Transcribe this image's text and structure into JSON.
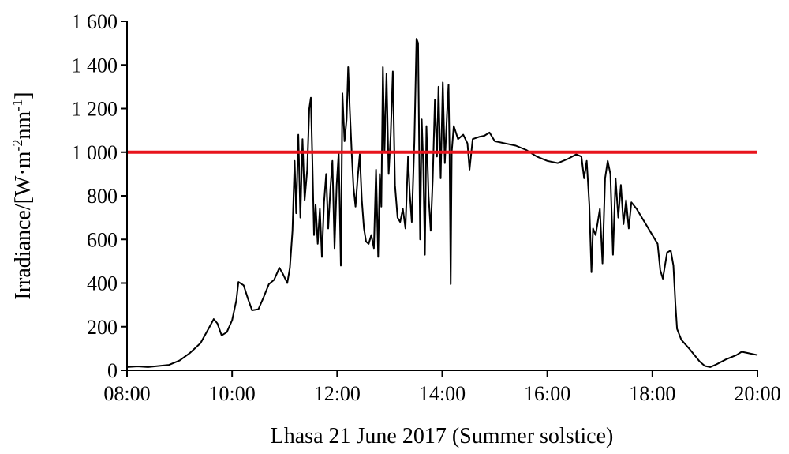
{
  "chart_data": {
    "type": "line",
    "title": "",
    "xlabel": "Lhasa 21 June 2017 (Summer solstice)",
    "ylabel": {
      "prefix": "Irradiance/[W·m",
      "sup1": "-2",
      "mid": "nm",
      "sup2": "-1",
      "suffix": "]"
    },
    "x_unit": "hours",
    "xlim": [
      8,
      20
    ],
    "ylim": [
      0,
      1600
    ],
    "x_ticks": [
      {
        "value": 8,
        "label": "08:00"
      },
      {
        "value": 10,
        "label": "10:00"
      },
      {
        "value": 12,
        "label": "12:00"
      },
      {
        "value": 14,
        "label": "14:00"
      },
      {
        "value": 16,
        "label": "16:00"
      },
      {
        "value": 18,
        "label": "18:00"
      },
      {
        "value": 20,
        "label": "20:00"
      }
    ],
    "y_ticks": [
      {
        "value": 0,
        "label": "0"
      },
      {
        "value": 200,
        "label": "200"
      },
      {
        "value": 400,
        "label": "400"
      },
      {
        "value": 600,
        "label": "600"
      },
      {
        "value": 800,
        "label": "800"
      },
      {
        "value": 1000,
        "label": "1 000"
      },
      {
        "value": 1200,
        "label": "1 200"
      },
      {
        "value": 1400,
        "label": "1 400"
      },
      {
        "value": 1600,
        "label": "1 600"
      }
    ],
    "grid": false,
    "colors": {
      "series": "#000000",
      "reference": "#e8141c"
    },
    "reference_line": {
      "y": 1000
    },
    "series": [
      {
        "values": [
          [
            8.0,
            15
          ],
          [
            8.2,
            18
          ],
          [
            8.4,
            15
          ],
          [
            8.6,
            20
          ],
          [
            8.8,
            25
          ],
          [
            9.0,
            45
          ],
          [
            9.2,
            80
          ],
          [
            9.4,
            125
          ],
          [
            9.55,
            190
          ],
          [
            9.65,
            235
          ],
          [
            9.72,
            215
          ],
          [
            9.8,
            160
          ],
          [
            9.9,
            175
          ],
          [
            10.0,
            230
          ],
          [
            10.08,
            320
          ],
          [
            10.12,
            405
          ],
          [
            10.22,
            390
          ],
          [
            10.3,
            330
          ],
          [
            10.38,
            275
          ],
          [
            10.5,
            280
          ],
          [
            10.6,
            335
          ],
          [
            10.7,
            395
          ],
          [
            10.8,
            415
          ],
          [
            10.9,
            470
          ],
          [
            10.97,
            440
          ],
          [
            11.05,
            400
          ],
          [
            11.1,
            470
          ],
          [
            11.15,
            640
          ],
          [
            11.19,
            960
          ],
          [
            11.22,
            720
          ],
          [
            11.26,
            1080
          ],
          [
            11.3,
            700
          ],
          [
            11.34,
            1060
          ],
          [
            11.38,
            780
          ],
          [
            11.43,
            920
          ],
          [
            11.47,
            1200
          ],
          [
            11.5,
            1250
          ],
          [
            11.53,
            950
          ],
          [
            11.56,
            620
          ],
          [
            11.59,
            760
          ],
          [
            11.63,
            580
          ],
          [
            11.67,
            740
          ],
          [
            11.71,
            520
          ],
          [
            11.75,
            770
          ],
          [
            11.79,
            900
          ],
          [
            11.83,
            650
          ],
          [
            11.87,
            830
          ],
          [
            11.91,
            960
          ],
          [
            11.95,
            560
          ],
          [
            11.99,
            850
          ],
          [
            12.03,
            1000
          ],
          [
            12.07,
            480
          ],
          [
            12.1,
            1270
          ],
          [
            12.14,
            1050
          ],
          [
            12.18,
            1150
          ],
          [
            12.21,
            1390
          ],
          [
            12.24,
            1200
          ],
          [
            12.28,
            980
          ],
          [
            12.31,
            840
          ],
          [
            12.35,
            750
          ],
          [
            12.39,
            880
          ],
          [
            12.43,
            990
          ],
          [
            12.47,
            780
          ],
          [
            12.51,
            650
          ],
          [
            12.55,
            590
          ],
          [
            12.6,
            580
          ],
          [
            12.65,
            620
          ],
          [
            12.7,
            560
          ],
          [
            12.74,
            920
          ],
          [
            12.78,
            520
          ],
          [
            12.81,
            900
          ],
          [
            12.84,
            750
          ],
          [
            12.87,
            1390
          ],
          [
            12.9,
            1000
          ],
          [
            12.94,
            1360
          ],
          [
            12.98,
            900
          ],
          [
            13.02,
            1080
          ],
          [
            13.06,
            1370
          ],
          [
            13.1,
            850
          ],
          [
            13.15,
            700
          ],
          [
            13.2,
            680
          ],
          [
            13.25,
            740
          ],
          [
            13.3,
            650
          ],
          [
            13.35,
            980
          ],
          [
            13.38,
            820
          ],
          [
            13.42,
            680
          ],
          [
            13.47,
            1050
          ],
          [
            13.51,
            1520
          ],
          [
            13.54,
            1500
          ],
          [
            13.58,
            600
          ],
          [
            13.61,
            1150
          ],
          [
            13.64,
            940
          ],
          [
            13.67,
            530
          ],
          [
            13.7,
            1120
          ],
          [
            13.74,
            800
          ],
          [
            13.78,
            640
          ],
          [
            13.82,
            880
          ],
          [
            13.86,
            1240
          ],
          [
            13.9,
            980
          ],
          [
            13.93,
            1300
          ],
          [
            13.97,
            880
          ],
          [
            14.01,
            1320
          ],
          [
            14.05,
            950
          ],
          [
            14.09,
            1170
          ],
          [
            14.12,
            1310
          ],
          [
            14.14,
            1000
          ],
          [
            14.16,
            395
          ],
          [
            14.18,
            1000
          ],
          [
            14.22,
            1120
          ],
          [
            14.3,
            1060
          ],
          [
            14.4,
            1080
          ],
          [
            14.48,
            1040
          ],
          [
            14.52,
            920
          ],
          [
            14.58,
            1060
          ],
          [
            14.7,
            1070
          ],
          [
            14.8,
            1075
          ],
          [
            14.9,
            1090
          ],
          [
            15.0,
            1050
          ],
          [
            15.2,
            1040
          ],
          [
            15.4,
            1030
          ],
          [
            15.6,
            1010
          ],
          [
            15.8,
            980
          ],
          [
            16.0,
            960
          ],
          [
            16.2,
            950
          ],
          [
            16.4,
            970
          ],
          [
            16.55,
            990
          ],
          [
            16.65,
            980
          ],
          [
            16.7,
            880
          ],
          [
            16.75,
            960
          ],
          [
            16.8,
            760
          ],
          [
            16.84,
            450
          ],
          [
            16.87,
            650
          ],
          [
            16.92,
            620
          ],
          [
            16.96,
            680
          ],
          [
            17.0,
            740
          ],
          [
            17.05,
            490
          ],
          [
            17.1,
            880
          ],
          [
            17.15,
            960
          ],
          [
            17.2,
            900
          ],
          [
            17.25,
            530
          ],
          [
            17.3,
            880
          ],
          [
            17.35,
            700
          ],
          [
            17.4,
            850
          ],
          [
            17.45,
            670
          ],
          [
            17.5,
            780
          ],
          [
            17.55,
            650
          ],
          [
            17.6,
            770
          ],
          [
            17.7,
            740
          ],
          [
            17.8,
            700
          ],
          [
            17.9,
            660
          ],
          [
            18.0,
            620
          ],
          [
            18.1,
            580
          ],
          [
            18.15,
            460
          ],
          [
            18.2,
            420
          ],
          [
            18.28,
            540
          ],
          [
            18.35,
            550
          ],
          [
            18.4,
            480
          ],
          [
            18.44,
            300
          ],
          [
            18.47,
            190
          ],
          [
            18.55,
            140
          ],
          [
            18.7,
            100
          ],
          [
            18.9,
            40
          ],
          [
            19.0,
            20
          ],
          [
            19.1,
            15
          ],
          [
            19.2,
            25
          ],
          [
            19.4,
            50
          ],
          [
            19.6,
            70
          ],
          [
            19.7,
            85
          ],
          [
            19.8,
            80
          ],
          [
            20.0,
            70
          ]
        ]
      }
    ]
  }
}
